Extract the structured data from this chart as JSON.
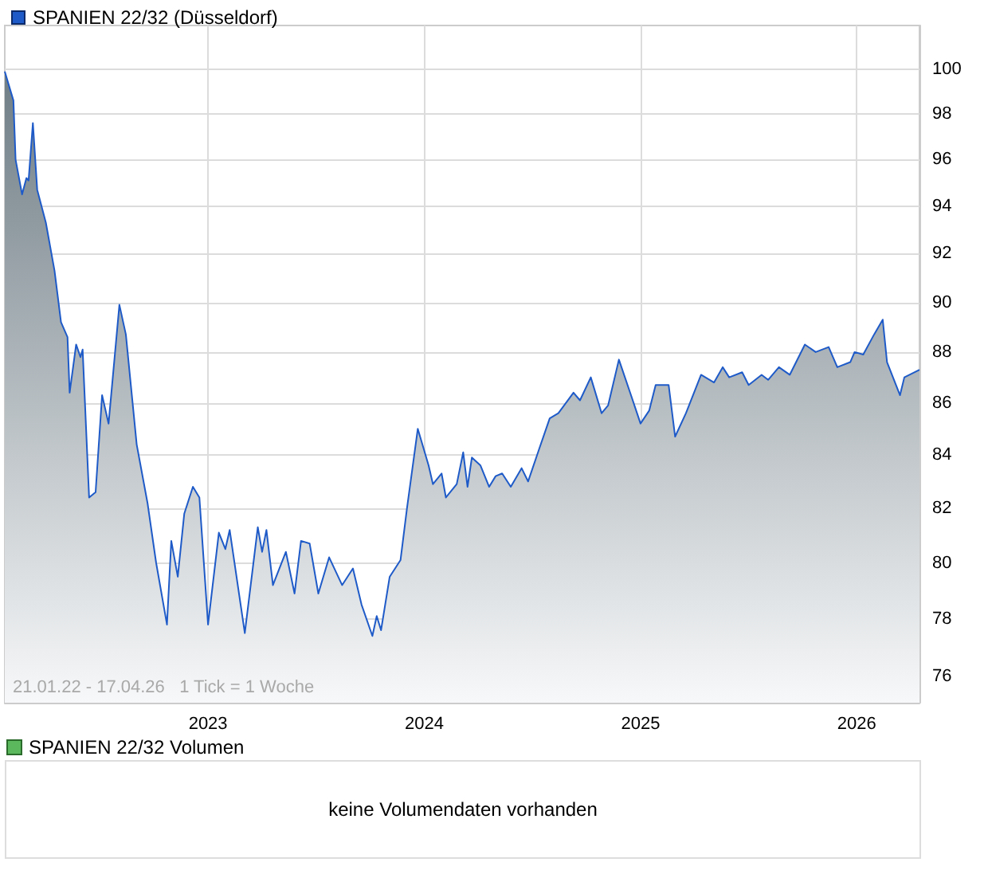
{
  "chart_data": [
    {
      "type": "area",
      "log": "y",
      "grid": true,
      "legend": "top left",
      "marker": "none",
      "xlim": [
        2022.06,
        2026.29
      ],
      "xticks": [
        2023,
        2024,
        2025,
        2026
      ],
      "ylim": [
        75.1,
        102
      ],
      "yticks": [
        76,
        78,
        80,
        82,
        84,
        86,
        88,
        90,
        92,
        94,
        96,
        98,
        100
      ],
      "annotations": [
        "21.01.22 - 17.04.26   1 Tick = 1 Woche"
      ],
      "x": [
        2022.06,
        2022.1,
        2022.11,
        2022.14,
        2022.16,
        2022.17,
        2022.19,
        2022.21,
        2022.25,
        2022.29,
        2022.32,
        2022.35,
        2022.36,
        2022.39,
        2022.41,
        2022.42,
        2022.45,
        2022.48,
        2022.51,
        2022.54,
        2022.59,
        2022.62,
        2022.67,
        2022.72,
        2022.76,
        2022.81,
        2022.83,
        2022.86,
        2022.89,
        2022.93,
        2022.96,
        2023.0,
        2023.05,
        2023.08,
        2023.1,
        2023.17,
        2023.23,
        2023.25,
        2023.27,
        2023.3,
        2023.36,
        2023.4,
        2023.43,
        2023.47,
        2023.51,
        2023.56,
        2023.62,
        2023.67,
        2023.71,
        2023.76,
        2023.78,
        2023.8,
        2023.84,
        2023.89,
        2023.92,
        2023.97,
        2024.02,
        2024.04,
        2024.08,
        2024.1,
        2024.15,
        2024.18,
        2024.2,
        2024.22,
        2024.26,
        2024.3,
        2024.33,
        2024.36,
        2024.4,
        2024.45,
        2024.48,
        2024.53,
        2024.58,
        2024.62,
        2024.69,
        2024.72,
        2024.77,
        2024.82,
        2024.85,
        2024.9,
        2024.96,
        2025.0,
        2025.04,
        2025.07,
        2025.13,
        2025.16,
        2025.21,
        2025.28,
        2025.34,
        2025.38,
        2025.41,
        2025.47,
        2025.5,
        2025.56,
        2025.59,
        2025.64,
        2025.69,
        2025.76,
        2025.81,
        2025.87,
        2025.91,
        2025.97,
        2025.99,
        2026.03,
        2026.08,
        2026.12,
        2026.14,
        2026.2,
        2026.22,
        2026.29
      ],
      "series": [
        {
          "name": "SPANIEN 22/32 (Düsseldorf)",
          "color": "#1f5bc8",
          "values": [
            99.9,
            98.6,
            96.0,
            94.5,
            95.2,
            95.1,
            97.6,
            94.7,
            93.3,
            91.3,
            89.2,
            88.6,
            86.4,
            88.3,
            87.8,
            88.1,
            82.4,
            82.6,
            86.3,
            85.2,
            89.9,
            88.7,
            84.4,
            82.2,
            80.0,
            77.8,
            80.8,
            79.5,
            81.8,
            82.8,
            82.4,
            77.8,
            81.1,
            80.5,
            81.2,
            77.5,
            81.3,
            80.4,
            81.2,
            79.2,
            80.4,
            78.9,
            80.8,
            80.7,
            78.9,
            80.2,
            79.2,
            79.8,
            78.5,
            77.4,
            78.1,
            77.6,
            79.5,
            80.1,
            82.0,
            85.0,
            83.6,
            82.9,
            83.3,
            82.4,
            82.9,
            84.1,
            82.8,
            83.9,
            83.6,
            82.8,
            83.2,
            83.3,
            82.8,
            83.5,
            83.0,
            84.2,
            85.4,
            85.6,
            86.4,
            86.1,
            87.0,
            85.6,
            85.9,
            87.7,
            86.2,
            85.2,
            85.7,
            86.7,
            86.7,
            84.7,
            85.6,
            87.1,
            86.8,
            87.4,
            87.0,
            87.2,
            86.7,
            87.1,
            86.9,
            87.4,
            87.1,
            88.3,
            88.0,
            88.2,
            87.4,
            87.6,
            88.0,
            87.9,
            88.7,
            89.3,
            87.6,
            86.3,
            87.0,
            87.3
          ]
        }
      ]
    },
    {
      "type": "other",
      "title": "SPANIEN 22/32 Volumen",
      "annotations": [
        "keine Volumendaten vorhanden"
      ]
    }
  ]
}
